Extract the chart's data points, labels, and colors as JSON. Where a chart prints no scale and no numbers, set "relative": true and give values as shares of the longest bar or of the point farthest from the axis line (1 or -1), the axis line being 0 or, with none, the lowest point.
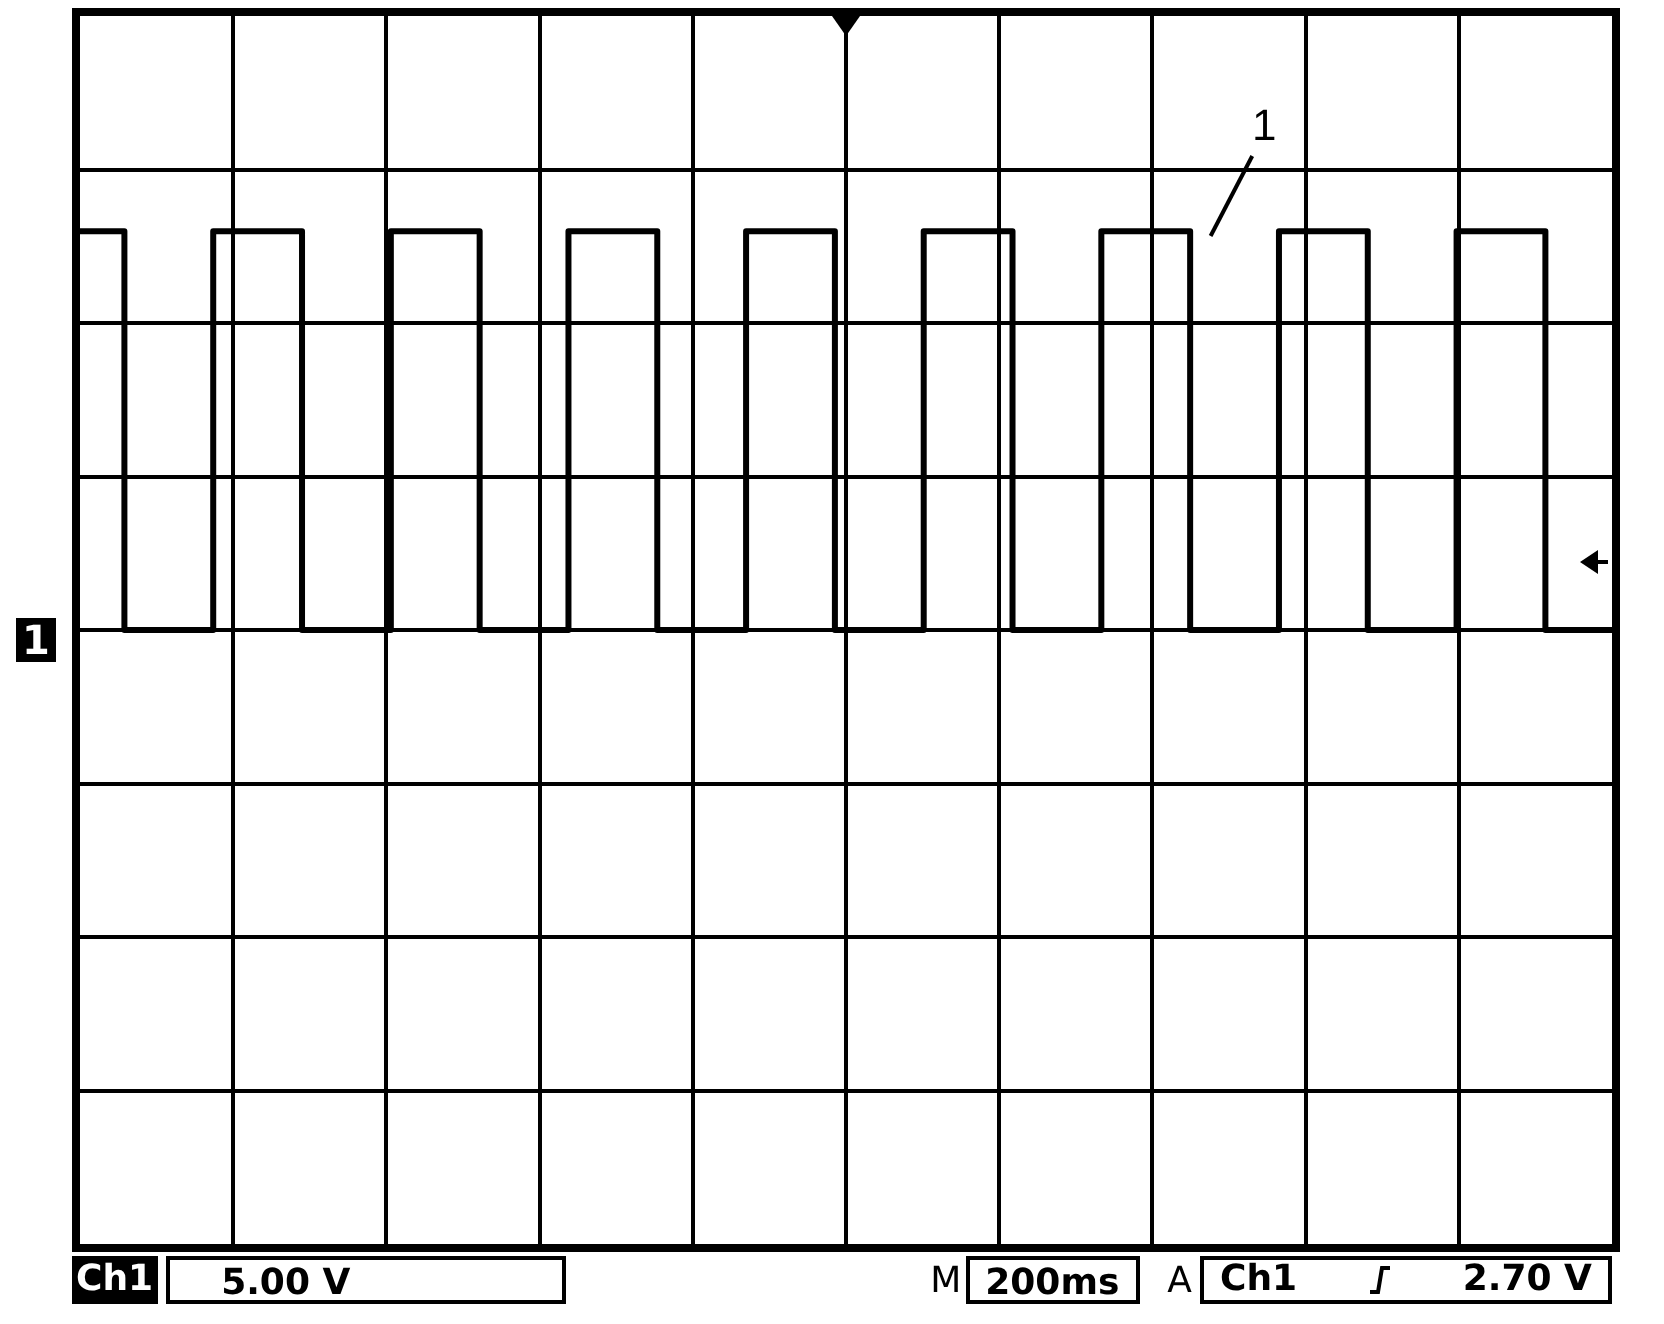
{
  "chart_data": {
    "type": "step",
    "relative": true,
    "grid": true,
    "categories": [
      null,
      null,
      null,
      null,
      null,
      null,
      null,
      null,
      null,
      null,
      null,
      null,
      null,
      null,
      null,
      null,
      null,
      null,
      null,
      null,
      null,
      null,
      null,
      null,
      null,
      null,
      null,
      null,
      null,
      null,
      null,
      null,
      null,
      null,
      null,
      null,
      null,
      null,
      null,
      null,
      null,
      null,
      null,
      null,
      null,
      null,
      null,
      null,
      null,
      null,
      null,
      null,
      null,
      null,
      null,
      null,
      null,
      null,
      null,
      null,
      null,
      null,
      null,
      null,
      null,
      null,
      null,
      null,
      null,
      null
    ],
    "series": [
      {
        "color": "#000000",
        "values": [
          1,
          1,
          1,
          0,
          0,
          0,
          0,
          1,
          1,
          1,
          1,
          0,
          0,
          0,
          0,
          1,
          1,
          1,
          1,
          0,
          0,
          0,
          0,
          1,
          1,
          1,
          1,
          0,
          0,
          0,
          0,
          1,
          1,
          1,
          1,
          0,
          0,
          0,
          0,
          1,
          1,
          1,
          1,
          0,
          0,
          0,
          0,
          1,
          1,
          1,
          1,
          0,
          0,
          0,
          0,
          1,
          1,
          1,
          1,
          0,
          0,
          0,
          0,
          1,
          1,
          1,
          1,
          0,
          0,
          0
        ]
      }
    ],
    "annotations": [
      "1",
      "1",
      "Ch1",
      "5.00 V",
      "M",
      "200ms",
      "A",
      "Ch1",
      "2.70 V"
    ]
  }
}
